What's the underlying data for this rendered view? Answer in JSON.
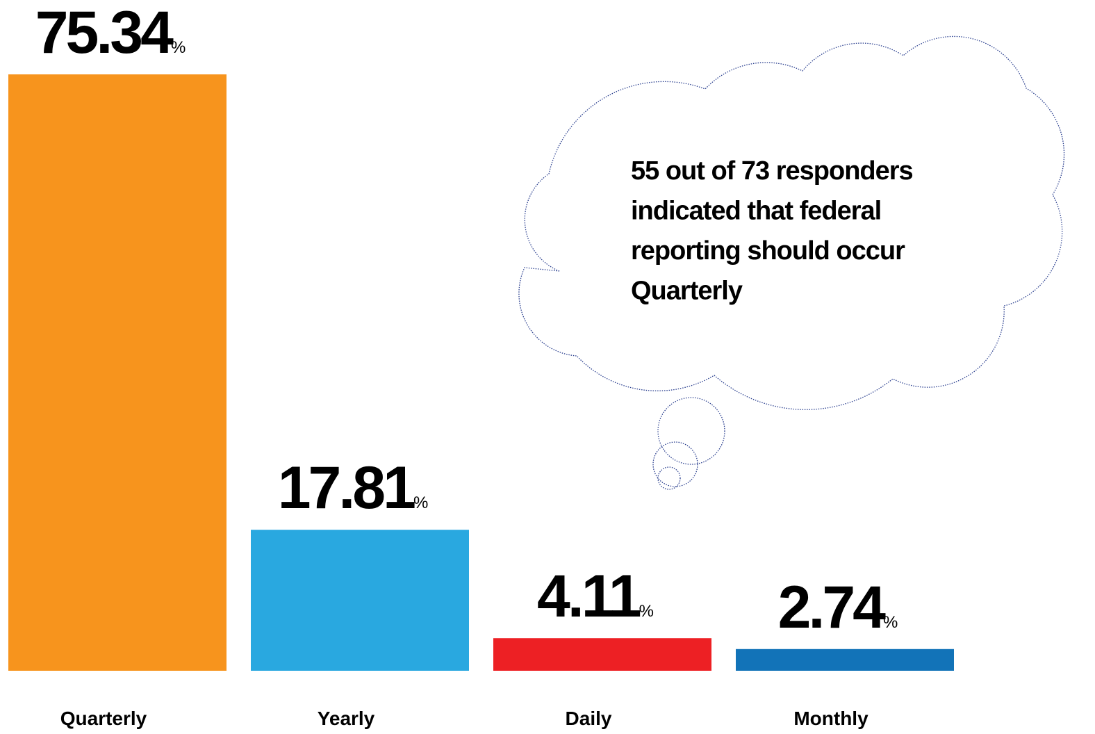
{
  "chart_data": {
    "type": "bar",
    "categories": [
      "Quarterly",
      "Yearly",
      "Daily",
      "Monthly"
    ],
    "values": [
      75.34,
      17.81,
      4.11,
      2.74
    ],
    "value_unit": "%",
    "colors": [
      "#f7941d",
      "#29a8e0",
      "#ed2024",
      "#1273b8"
    ],
    "annotation": [
      "55 out of 73 responders",
      "indicated that federal",
      "reporting should occur",
      "Quarterly"
    ]
  }
}
